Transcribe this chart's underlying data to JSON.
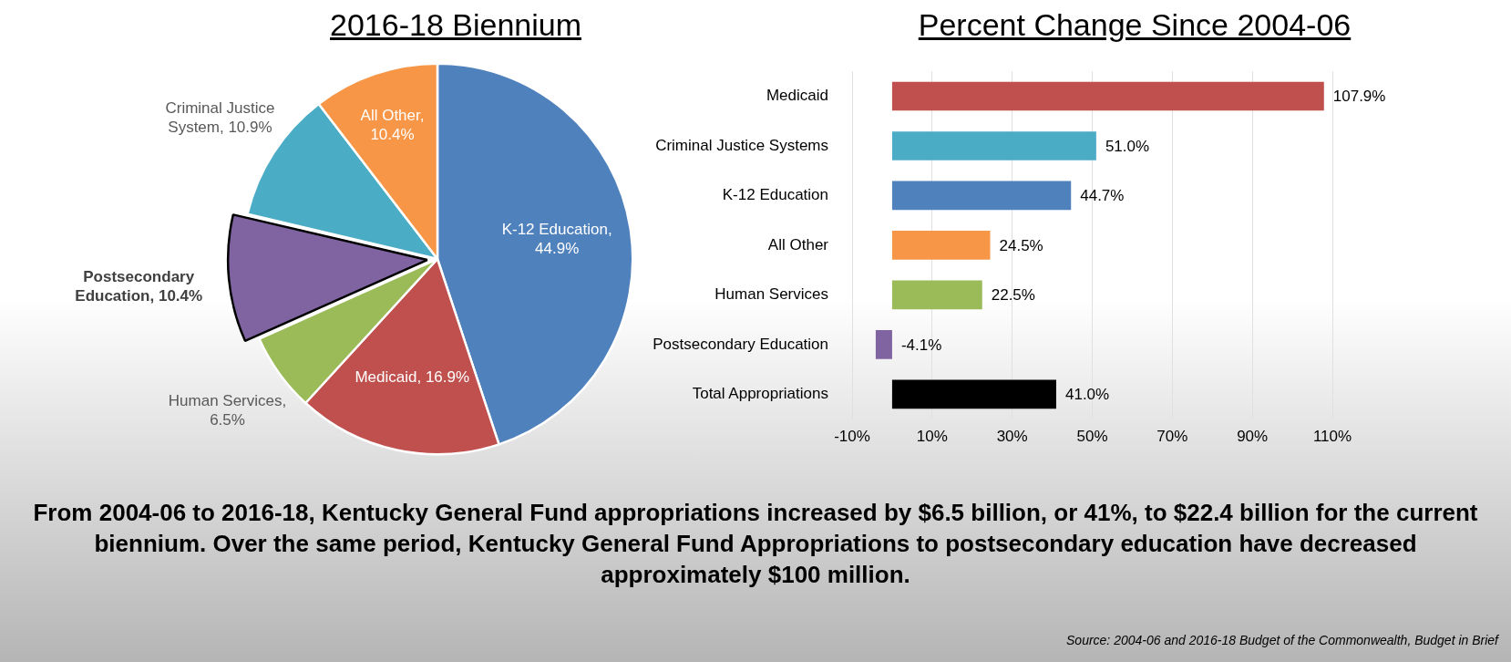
{
  "chart_data": [
    {
      "type": "pie",
      "title": "2016-18 Biennium",
      "categories": [
        "K-12 Education, 44.9%",
        "Medicaid, 16.9%",
        "Human Services, 6.5%",
        "Postsecondary Education, 10.4%",
        "Criminal Justice System, 10.9%",
        "All Other, 10.4%"
      ],
      "values": [
        44.9,
        16.9,
        6.5,
        10.4,
        10.9,
        10.4
      ],
      "colors": [
        "#4f81bd",
        "#c0504d",
        "#9bbb59",
        "#8064a2",
        "#4bacc6",
        "#f79646"
      ],
      "legend": false
    },
    {
      "type": "bar",
      "orientation": "horizontal",
      "title": "Percent Change Since 2004-06",
      "categories": [
        "Medicaid",
        "Criminal Justice Systems",
        "K-12 Education",
        "All Other",
        "Human Services",
        "Postsecondary Education",
        "Total Appropriations"
      ],
      "values": [
        107.9,
        51.0,
        44.7,
        24.5,
        22.5,
        -4.1,
        41.0
      ],
      "colors": [
        "#c0504d",
        "#4bacc6",
        "#4f81bd",
        "#f79646",
        "#9bbb59",
        "#8064a2",
        "#000000"
      ],
      "value_labels": [
        "107.9%",
        "51.0%",
        "44.7%",
        "24.5%",
        "22.5%",
        "-4.1%",
        "41.0%"
      ],
      "xlim": [
        -10,
        110
      ],
      "xticks": [
        {
          "value": -10,
          "label": "-10%"
        },
        {
          "value": 10,
          "label": "10%"
        },
        {
          "value": 30,
          "label": "30%"
        },
        {
          "value": 50,
          "label": "50%"
        },
        {
          "value": 70,
          "label": "70%"
        },
        {
          "value": 90,
          "label": "90%"
        },
        {
          "value": 110,
          "label": "110%"
        }
      ],
      "grid": "x",
      "legend": false,
      "annotations": [
        "From 2004-06 to 2016-18, Kentucky General Fund appropriations increased by $6.5 billion, or 41%, to $22.4 billion for the current biennium. Over the same period, Kentucky General Fund Appropriations to postsecondary education have decreased approximately $100 million.",
        "Source: 2004-06 and 2016-18 Budget of the Commonwealth, Budget in Brief"
      ]
    }
  ]
}
